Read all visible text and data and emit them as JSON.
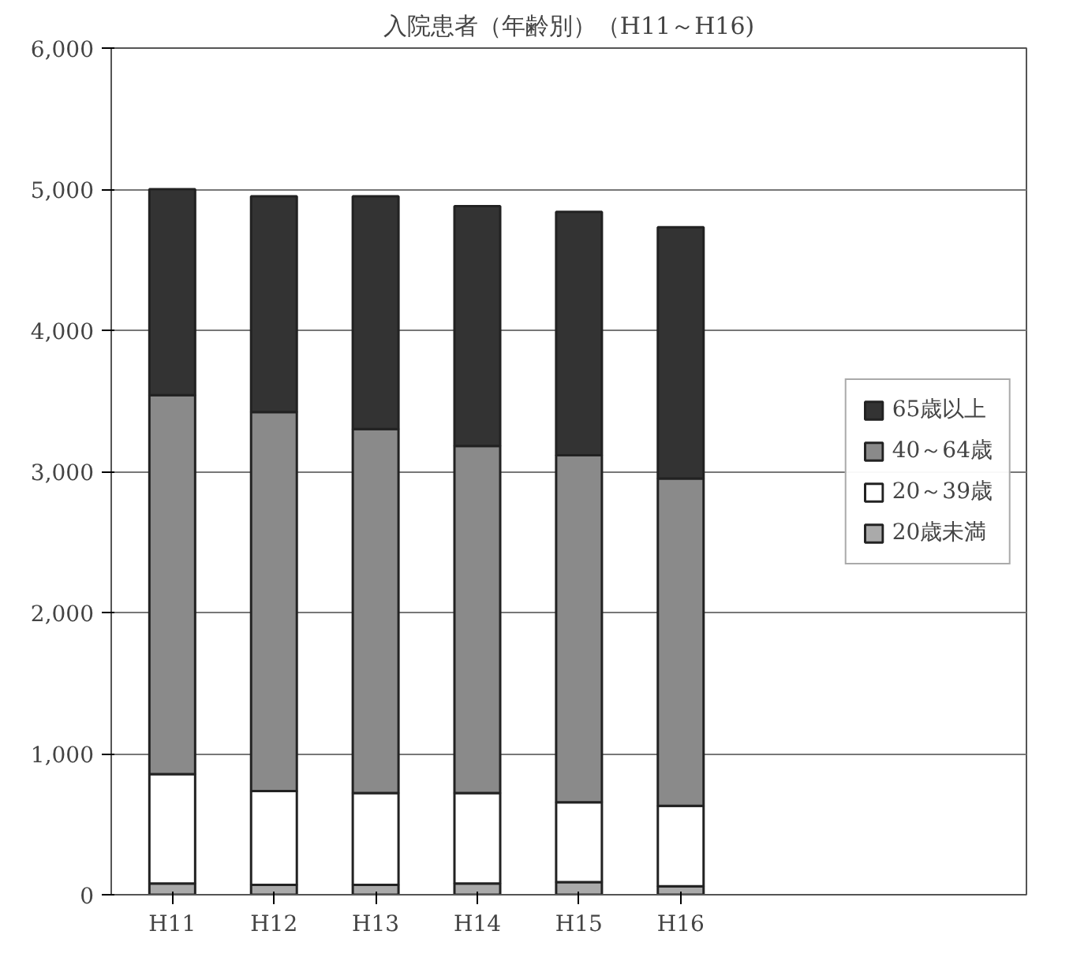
{
  "chart_data": {
    "type": "bar",
    "title": "入院患者（年齢別）（H11～H16)",
    "stacked": true,
    "categories": [
      "H11",
      "H12",
      "H13",
      "H14",
      "H15",
      "H16"
    ],
    "series": [
      {
        "name": "20歳未満",
        "color": "#aaaaaa",
        "values": [
          80,
          70,
          70,
          80,
          90,
          60
        ]
      },
      {
        "name": "20～39歳",
        "color": "#ffffff",
        "values": [
          775,
          665,
          650,
          640,
          565,
          570
        ]
      },
      {
        "name": "40～64歳",
        "color": "#8a8a8a",
        "values": [
          2685,
          2685,
          2580,
          2460,
          2460,
          2320
        ]
      },
      {
        "name": "65歳以上",
        "color": "#333333",
        "values": [
          1460,
          1530,
          1650,
          1700,
          1725,
          1780
        ]
      }
    ],
    "ylim": [
      0,
      6000
    ],
    "yticks": [
      {
        "value": 0,
        "label": "0"
      },
      {
        "value": 1000,
        "label": "1,000"
      },
      {
        "value": 2000,
        "label": "2,000"
      },
      {
        "value": 3000,
        "label": "3,000"
      },
      {
        "value": 4000,
        "label": "4,000"
      },
      {
        "value": 5000,
        "label": "5,000"
      },
      {
        "value": 6000,
        "label": "6,000"
      }
    ],
    "grid": "y",
    "legend": "right"
  }
}
